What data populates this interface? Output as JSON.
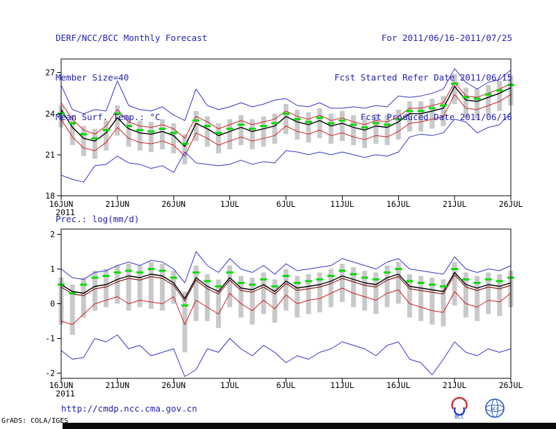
{
  "header": {
    "title": "DERF/NCC/BCC Monthly Forecast",
    "member_size": "Member Size=40",
    "for_range": "For 2011/06/16-2011/07/25",
    "refer_date": "Fcst Started Refer Date 2011/06/15",
    "produced_date": "Fcst Produced Date 2011/06/16"
  },
  "footer": {
    "url": "http://cmdp.ncc.cma.gov.cn",
    "grads_credit": "GrADS: COLA/IGES",
    "logo1": "BCC",
    "logo2": "NCC"
  },
  "colors": {
    "text_blue": "#2222b2",
    "line_blue": "#3333cc",
    "line_red": "#cc2222",
    "line_black": "#000000",
    "line_darkred": "#8b2020",
    "marker_green": "#00dd00",
    "bar_gray": "#c9c9c9",
    "frame_black": "#000000"
  },
  "chart_data": [
    {
      "id": "surface-temp",
      "type": "line",
      "title": "Mean Surf. Temp.: °C",
      "x_tick_labels": [
        "16JUN",
        "21JUN",
        "26JUN",
        "1JUL",
        "6JUL",
        "11JUL",
        "16JUL",
        "21JUL",
        "26JUL"
      ],
      "x_tick_days": [
        0,
        5,
        10,
        15,
        20,
        25,
        30,
        35,
        40
      ],
      "x_year_label": "2011",
      "x_range_days": [
        0,
        40
      ],
      "ylim": [
        18,
        28
      ],
      "yticks": [
        18,
        21,
        24,
        27
      ],
      "grid": false,
      "legend": "none",
      "series": [
        {
          "name": "spread-bar",
          "type": "bar-range",
          "color": "#c9c9c9",
          "low": [
            23.0,
            21.7,
            20.9,
            20.7,
            21.3,
            22.4,
            21.6,
            21.3,
            21.2,
            21.4,
            21.1,
            20.3,
            22.0,
            21.6,
            21.1,
            21.4,
            21.7,
            21.4,
            21.6,
            21.8,
            22.5,
            22.1,
            21.9,
            22.2,
            21.8,
            22.0,
            21.7,
            21.5,
            21.8,
            21.7,
            22.1,
            22.7,
            22.7,
            22.9,
            23.1,
            24.7,
            23.7,
            23.6,
            23.9,
            24.2,
            24.6
          ],
          "high": [
            24.6,
            23.9,
            23.1,
            22.9,
            23.5,
            24.6,
            23.8,
            23.5,
            23.4,
            23.6,
            23.3,
            22.5,
            24.2,
            23.8,
            23.3,
            23.6,
            23.9,
            23.6,
            23.8,
            24.0,
            24.7,
            24.3,
            24.1,
            24.4,
            24.0,
            24.2,
            23.9,
            23.7,
            24.0,
            23.9,
            24.3,
            24.9,
            24.9,
            25.1,
            25.3,
            26.9,
            25.9,
            25.8,
            26.1,
            26.4,
            26.8
          ]
        },
        {
          "name": "ensemble-max",
          "type": "line",
          "color": "#3333cc",
          "width": 1,
          "values": [
            26.1,
            24.3,
            24.0,
            24.3,
            24.2,
            26.4,
            24.6,
            24.3,
            24.2,
            24.5,
            23.9,
            23.5,
            25.8,
            24.6,
            24.3,
            24.5,
            24.8,
            24.5,
            24.7,
            25.0,
            25.1,
            24.6,
            24.5,
            24.8,
            24.4,
            24.4,
            24.5,
            24.4,
            24.6,
            24.5,
            25.3,
            25.2,
            25.3,
            25.5,
            25.8,
            27.3,
            26.3,
            25.8,
            26.3,
            26.5,
            27.2
          ]
        },
        {
          "name": "plus-sigma",
          "type": "line",
          "color": "#cc2222",
          "width": 1,
          "values": [
            24.8,
            23.6,
            22.8,
            22.5,
            23.1,
            24.3,
            23.4,
            23.1,
            23.0,
            23.2,
            22.9,
            22.2,
            23.8,
            23.4,
            22.9,
            23.2,
            23.5,
            23.2,
            23.4,
            23.6,
            24.2,
            23.8,
            23.6,
            23.9,
            23.5,
            23.7,
            23.4,
            23.2,
            23.5,
            23.4,
            23.8,
            24.4,
            24.4,
            24.6,
            24.8,
            26.3,
            25.3,
            25.2,
            25.5,
            25.8,
            26.2
          ]
        },
        {
          "name": "minus-sigma",
          "type": "line",
          "color": "#cc2222",
          "width": 1,
          "values": [
            23.6,
            22.3,
            21.5,
            21.3,
            21.9,
            23.0,
            22.2,
            21.9,
            21.8,
            22.0,
            21.7,
            20.9,
            22.6,
            22.2,
            21.7,
            22.0,
            22.3,
            22.0,
            22.2,
            22.4,
            23.1,
            22.7,
            22.5,
            22.8,
            22.4,
            22.6,
            22.3,
            22.1,
            22.4,
            22.3,
            22.7,
            23.3,
            23.4,
            23.6,
            23.8,
            25.4,
            24.4,
            24.3,
            24.6,
            24.9,
            25.4
          ]
        },
        {
          "name": "ensemble-min",
          "type": "line",
          "color": "#3333cc",
          "width": 1,
          "values": [
            19.5,
            19.2,
            19.0,
            20.2,
            20.3,
            20.9,
            20.4,
            20.3,
            20.0,
            20.2,
            19.7,
            21.2,
            20.4,
            20.3,
            20.2,
            20.3,
            20.6,
            20.3,
            20.5,
            20.4,
            21.3,
            21.2,
            21.0,
            21.2,
            21.0,
            21.2,
            21.0,
            20.8,
            21.0,
            20.9,
            21.2,
            22.3,
            22.5,
            22.4,
            22.6,
            23.6,
            23.4,
            22.6,
            23.0,
            23.2,
            24.1
          ]
        },
        {
          "name": "ensemble-mean",
          "type": "line",
          "color": "#000000",
          "width": 1.4,
          "values": [
            24.3,
            23.0,
            22.2,
            22.0,
            22.6,
            23.7,
            22.9,
            22.6,
            22.5,
            22.7,
            22.4,
            21.6,
            23.3,
            22.9,
            22.4,
            22.7,
            23.0,
            22.7,
            22.9,
            23.1,
            23.8,
            23.4,
            23.2,
            23.5,
            23.1,
            23.3,
            23.0,
            22.8,
            23.1,
            23.0,
            23.4,
            24.0,
            24.0,
            24.2,
            24.4,
            26.0,
            25.0,
            24.9,
            25.2,
            25.5,
            25.9
          ]
        },
        {
          "name": "median-marker",
          "type": "dash-markers",
          "color": "#00dd00",
          "values": [
            24.0,
            23.3,
            22.5,
            22.2,
            22.8,
            24.0,
            23.1,
            22.8,
            22.7,
            22.9,
            22.6,
            21.8,
            23.5,
            23.1,
            22.6,
            22.9,
            23.2,
            22.9,
            23.1,
            23.3,
            24.0,
            23.6,
            23.4,
            23.7,
            23.3,
            23.5,
            23.2,
            23.0,
            23.3,
            23.2,
            23.6,
            24.2,
            24.2,
            24.4,
            24.6,
            26.2,
            25.2,
            25.1,
            25.4,
            25.7,
            26.1
          ]
        }
      ]
    },
    {
      "id": "precipitation",
      "type": "line",
      "title": "Prec.: log(mm/d)",
      "x_tick_labels": [
        "16JUN",
        "21JUN",
        "26JUN",
        "1JUL",
        "6JUL",
        "11JUL",
        "16JUL",
        "21JUL",
        "26JUL"
      ],
      "x_tick_days": [
        0,
        5,
        10,
        15,
        20,
        25,
        30,
        35,
        40
      ],
      "x_year_label": "2011",
      "x_range_days": [
        0,
        40
      ],
      "ylim": [
        -2.15,
        2.15
      ],
      "yticks": [
        -2,
        -1,
        0,
        1,
        2
      ],
      "grid": false,
      "legend": "none",
      "series": [
        {
          "name": "spread-bar",
          "type": "bar-range",
          "color": "#c9c9c9",
          "low": [
            -0.6,
            -0.9,
            -0.4,
            -0.2,
            -0.1,
            0.0,
            -0.2,
            -0.1,
            -0.15,
            -0.2,
            0.0,
            -1.4,
            -0.5,
            -0.5,
            -0.7,
            -0.1,
            -0.4,
            -0.6,
            -0.3,
            -0.55,
            -0.2,
            -0.4,
            -0.3,
            -0.25,
            -0.1,
            0.05,
            -0.1,
            -0.2,
            -0.3,
            -0.1,
            0.0,
            -0.4,
            -0.5,
            -0.6,
            -0.65,
            -0.05,
            -0.4,
            -0.5,
            -0.3,
            -0.35,
            -0.1
          ],
          "high": [
            0.75,
            0.55,
            0.75,
            0.95,
            1.0,
            1.1,
            1.15,
            1.1,
            1.2,
            1.15,
            0.95,
            0.35,
            1.1,
            0.85,
            0.7,
            1.1,
            0.8,
            0.75,
            0.9,
            0.7,
            1.0,
            0.8,
            0.85,
            0.9,
            1.0,
            1.15,
            1.05,
            0.95,
            0.9,
            1.1,
            1.2,
            0.85,
            0.8,
            0.75,
            0.7,
            1.2,
            0.9,
            0.8,
            0.9,
            0.85,
            0.95
          ]
        },
        {
          "name": "ensemble-max",
          "type": "line",
          "color": "#3333cc",
          "width": 1,
          "values": [
            1.0,
            0.75,
            0.7,
            0.9,
            0.95,
            1.1,
            1.2,
            1.1,
            1.25,
            1.2,
            1.0,
            0.6,
            1.5,
            1.1,
            0.9,
            1.3,
            1.0,
            0.9,
            1.1,
            0.85,
            1.15,
            0.95,
            1.0,
            1.05,
            1.1,
            1.3,
            1.2,
            1.1,
            1.0,
            1.2,
            1.3,
            1.0,
            0.95,
            0.9,
            0.85,
            1.35,
            1.0,
            0.9,
            1.0,
            0.95,
            1.1
          ]
        },
        {
          "name": "lower-spread",
          "type": "line",
          "color": "#cc2222",
          "width": 1,
          "values": [
            -0.5,
            -0.6,
            -0.3,
            0.0,
            0.1,
            0.2,
            0.0,
            0.1,
            0.05,
            0.0,
            0.2,
            -0.6,
            0.1,
            -0.1,
            -0.3,
            0.3,
            0.0,
            -0.2,
            0.1,
            -0.15,
            0.25,
            0.0,
            0.1,
            0.15,
            0.3,
            0.45,
            0.3,
            0.2,
            0.1,
            0.3,
            0.4,
            0.0,
            -0.1,
            -0.2,
            -0.25,
            0.35,
            0.0,
            -0.1,
            0.1,
            0.05,
            0.3
          ]
        },
        {
          "name": "ensemble-min",
          "type": "line",
          "color": "#3333cc",
          "width": 1,
          "values": [
            -1.35,
            -1.6,
            -1.55,
            -1.0,
            -1.1,
            -0.9,
            -1.3,
            -1.2,
            -1.5,
            -1.4,
            -1.3,
            -2.1,
            -1.9,
            -1.3,
            -1.4,
            -1.0,
            -1.3,
            -1.5,
            -1.2,
            -1.4,
            -1.7,
            -1.5,
            -1.6,
            -1.4,
            -1.3,
            -1.1,
            -1.2,
            -1.3,
            -1.5,
            -1.2,
            -1.1,
            -1.6,
            -1.7,
            -2.05,
            -1.6,
            -1.1,
            -1.4,
            -1.5,
            -1.3,
            -1.4,
            -1.3
          ]
        },
        {
          "name": "median-line",
          "type": "line",
          "color": "#8b2020",
          "width": 1.2,
          "values": [
            0.48,
            0.28,
            0.23,
            0.43,
            0.48,
            0.63,
            0.73,
            0.68,
            0.78,
            0.73,
            0.53,
            0.08,
            0.68,
            0.43,
            0.28,
            0.68,
            0.38,
            0.33,
            0.48,
            0.28,
            0.58,
            0.38,
            0.43,
            0.48,
            0.58,
            0.73,
            0.63,
            0.53,
            0.48,
            0.68,
            0.78,
            0.43,
            0.38,
            0.33,
            0.28,
            0.83,
            0.48,
            0.38,
            0.48,
            0.43,
            0.53
          ]
        },
        {
          "name": "ensemble-mean",
          "type": "line",
          "color": "#000000",
          "width": 1.4,
          "values": [
            0.55,
            0.35,
            0.3,
            0.5,
            0.55,
            0.7,
            0.8,
            0.75,
            0.85,
            0.8,
            0.6,
            0.15,
            0.75,
            0.5,
            0.35,
            0.75,
            0.45,
            0.4,
            0.55,
            0.35,
            0.65,
            0.45,
            0.5,
            0.55,
            0.65,
            0.8,
            0.7,
            0.6,
            0.55,
            0.75,
            0.85,
            0.5,
            0.45,
            0.4,
            0.35,
            0.9,
            0.55,
            0.45,
            0.55,
            0.5,
            0.6
          ]
        },
        {
          "name": "median-marker",
          "type": "dash-markers",
          "color": "#00dd00",
          "values": [
            0.55,
            0.3,
            0.55,
            0.75,
            0.8,
            0.9,
            0.95,
            0.9,
            1.0,
            0.95,
            0.75,
            -0.05,
            0.9,
            0.65,
            0.5,
            0.9,
            0.6,
            0.55,
            0.7,
            0.5,
            0.8,
            0.6,
            0.65,
            0.7,
            0.8,
            0.95,
            0.85,
            0.75,
            0.7,
            0.9,
            1.0,
            0.65,
            0.6,
            0.55,
            0.5,
            1.0,
            0.7,
            0.6,
            0.7,
            0.65,
            0.75
          ]
        }
      ]
    }
  ]
}
